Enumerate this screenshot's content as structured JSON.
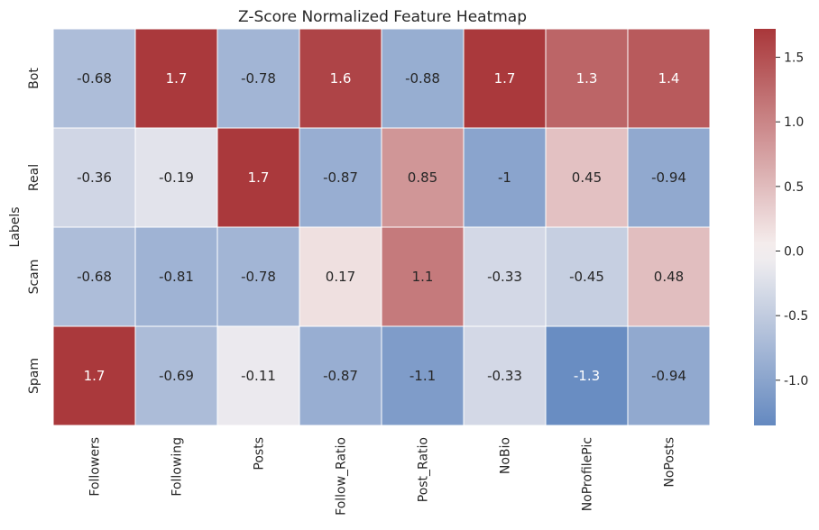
{
  "chart_data": {
    "type": "heatmap",
    "title": "Z-Score Normalized Feature Heatmap",
    "ylabel": "Labels",
    "xlabel": "",
    "rows": [
      "Bot",
      "Real",
      "Scam",
      "Spam"
    ],
    "columns": [
      "Followers",
      "Following",
      "Posts",
      "Follow_Ratio",
      "Post_Ratio",
      "NoBio",
      "NoProfilePic",
      "NoPosts"
    ],
    "values": [
      [
        -0.68,
        1.7,
        -0.78,
        1.6,
        -0.88,
        1.7,
        1.3,
        1.4
      ],
      [
        -0.36,
        -0.19,
        1.7,
        -0.87,
        0.85,
        -1,
        0.45,
        -0.94
      ],
      [
        -0.68,
        -0.81,
        -0.78,
        0.17,
        1.1,
        -0.33,
        -0.45,
        0.48
      ],
      [
        1.7,
        -0.69,
        -0.11,
        -0.87,
        -1.1,
        -0.33,
        -1.3,
        -0.94
      ]
    ],
    "cell_labels": [
      [
        "-0.68",
        "1.7",
        "-0.78",
        "1.6",
        "-0.88",
        "1.7",
        "1.3",
        "1.4"
      ],
      [
        "-0.36",
        "-0.19",
        "1.7",
        "-0.87",
        "0.85",
        "-1",
        "0.45",
        "-0.94"
      ],
      [
        "-0.68",
        "-0.81",
        "-0.78",
        "0.17",
        "1.1",
        "-0.33",
        "-0.45",
        "0.48"
      ],
      [
        "1.7",
        "-0.69",
        "-0.11",
        "-0.87",
        "-1.1",
        "-0.33",
        "-1.3",
        "-0.94"
      ]
    ],
    "colorbar": {
      "range": [
        -1.35,
        1.72
      ],
      "ticks": [
        1.5,
        1.0,
        0.5,
        0.0,
        -0.5,
        -1.0
      ],
      "tick_labels": [
        "1.5",
        "1.0",
        "0.5",
        "0.0",
        "-0.5",
        "-1.0"
      ]
    },
    "colormap": "vlag",
    "colormap_stops": [
      "#6489c0",
      "#f7f2f2",
      "#a9373a"
    ],
    "cell_border_color": "#ffffff"
  }
}
